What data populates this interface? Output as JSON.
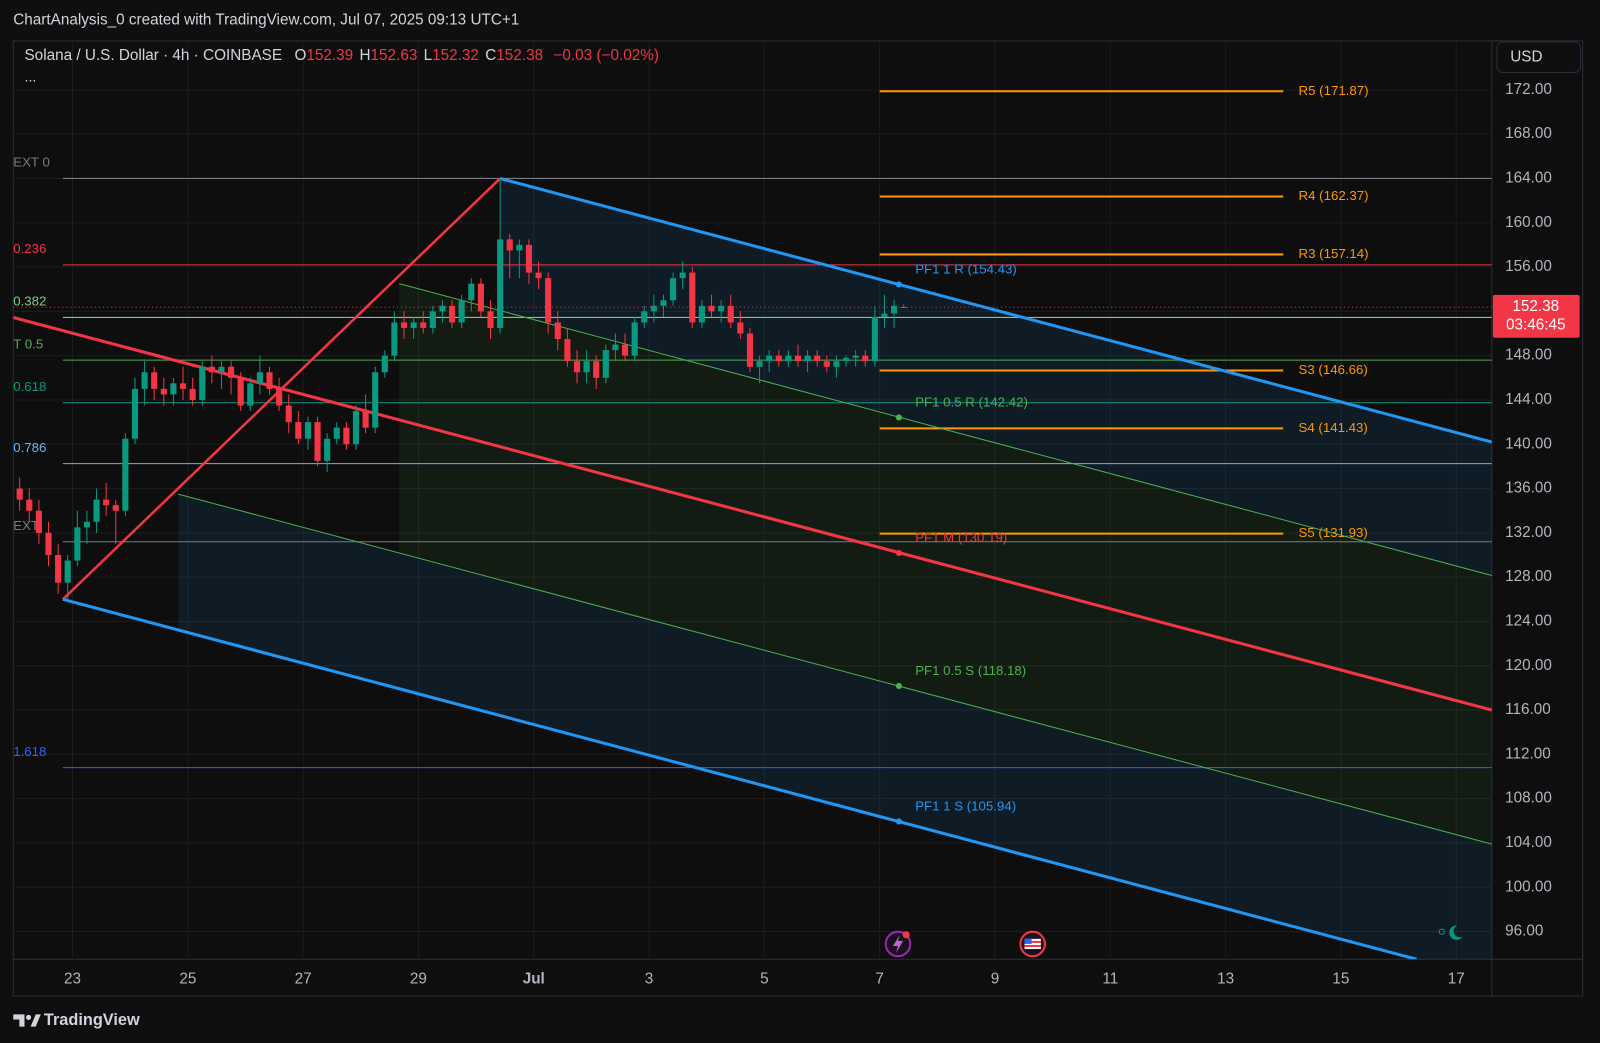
{
  "header": {
    "attribution": "ChartAnalysis_0 created with TradingView.com, Jul 07, 2025 09:13 UTC+1",
    "symbol": "Solana / U.S. Dollar · 4h · COINBASE",
    "ohlc_prefixes": [
      "O",
      "H",
      "L",
      "C"
    ],
    "change": "−0.03 (−0.02%)",
    "more": "...",
    "currency": "USD",
    "brand": "TradingView"
  },
  "chart_data": {
    "type": "candlestick",
    "x": [
      "2025-06-22 00:00",
      "2025-06-22 04:00",
      "2025-06-22 08:00",
      "2025-06-22 12:00",
      "2025-06-22 16:00",
      "2025-06-22 20:00",
      "2025-06-23 00:00",
      "2025-06-23 04:00",
      "2025-06-23 08:00",
      "2025-06-23 12:00",
      "2025-06-23 16:00",
      "2025-06-23 20:00",
      "2025-06-24 00:00",
      "2025-06-24 04:00",
      "2025-06-24 08:00",
      "2025-06-24 12:00",
      "2025-06-24 16:00",
      "2025-06-24 20:00",
      "2025-06-25 00:00",
      "2025-06-25 04:00",
      "2025-06-25 08:00",
      "2025-06-25 12:00",
      "2025-06-25 16:00",
      "2025-06-25 20:00",
      "2025-06-26 00:00",
      "2025-06-26 04:00",
      "2025-06-26 08:00",
      "2025-06-26 12:00",
      "2025-06-26 16:00",
      "2025-06-26 20:00",
      "2025-06-27 00:00",
      "2025-06-27 04:00",
      "2025-06-27 08:00",
      "2025-06-27 12:00",
      "2025-06-27 16:00",
      "2025-06-27 20:00",
      "2025-06-28 00:00",
      "2025-06-28 04:00",
      "2025-06-28 08:00",
      "2025-06-28 12:00",
      "2025-06-28 16:00",
      "2025-06-28 20:00",
      "2025-06-29 00:00",
      "2025-06-29 04:00",
      "2025-06-29 08:00",
      "2025-06-29 12:00",
      "2025-06-29 16:00",
      "2025-06-29 20:00",
      "2025-06-30 00:00",
      "2025-06-30 04:00",
      "2025-06-30 08:00",
      "2025-06-30 12:00",
      "2025-06-30 16:00",
      "2025-06-30 20:00",
      "2025-07-01 00:00",
      "2025-07-01 04:00",
      "2025-07-01 08:00",
      "2025-07-01 12:00",
      "2025-07-01 16:00",
      "2025-07-01 20:00",
      "2025-07-02 00:00",
      "2025-07-02 04:00",
      "2025-07-02 08:00",
      "2025-07-02 12:00",
      "2025-07-02 16:00",
      "2025-07-02 20:00",
      "2025-07-03 00:00",
      "2025-07-03 04:00",
      "2025-07-03 08:00",
      "2025-07-03 12:00",
      "2025-07-03 16:00",
      "2025-07-03 20:00",
      "2025-07-04 00:00",
      "2025-07-04 04:00",
      "2025-07-04 08:00",
      "2025-07-04 12:00",
      "2025-07-04 16:00",
      "2025-07-04 20:00",
      "2025-07-05 00:00",
      "2025-07-05 04:00",
      "2025-07-05 08:00",
      "2025-07-05 12:00",
      "2025-07-05 16:00",
      "2025-07-05 20:00",
      "2025-07-06 00:00",
      "2025-07-06 04:00",
      "2025-07-06 08:00",
      "2025-07-06 12:00",
      "2025-07-06 16:00",
      "2025-07-06 20:00",
      "2025-07-07 00:00",
      "2025-07-07 04:00",
      "2025-07-07 08:00"
    ],
    "open": [
      136,
      135,
      134,
      132,
      130,
      127.5,
      129.5,
      132.5,
      133,
      135,
      134.5,
      134,
      140.5,
      145,
      146.5,
      145,
      144.5,
      145.5,
      145,
      144,
      147,
      146.5,
      147,
      146,
      143.5,
      145.5,
      146.5,
      145,
      143.5,
      142,
      140.5,
      142,
      138.5,
      140.5,
      141.5,
      140,
      143,
      141.5,
      146.5,
      148,
      151,
      150.5,
      151,
      150.5,
      152,
      152.5,
      151,
      153,
      154.5,
      152,
      150.5,
      158.5,
      157.5,
      158,
      155.5,
      155,
      151,
      149.5,
      147.5,
      146.5,
      147.5,
      146,
      148.5,
      149,
      148,
      151,
      152,
      152.5,
      153,
      155,
      155.5,
      151,
      152.5,
      152,
      152.5,
      151,
      150,
      147,
      147.5,
      148,
      147.5,
      148,
      147.5,
      148,
      147.5,
      147,
      147.5,
      147.8,
      148,
      147.5,
      151.5,
      151.8,
      152.39
    ],
    "high": [
      137,
      136,
      135,
      133,
      131,
      130,
      134,
      134,
      136,
      136.5,
      135,
      141,
      146,
      147.5,
      147,
      146,
      146,
      147,
      146,
      147.5,
      148,
      147.5,
      147.5,
      146.5,
      146,
      148,
      147,
      146,
      144.5,
      143,
      142.5,
      142.5,
      141,
      142,
      142,
      143.5,
      144.5,
      147,
      148.5,
      152,
      152,
      151.5,
      152,
      152.5,
      153,
      153,
      153.5,
      155,
      155,
      153,
      164,
      159,
      158.5,
      158.5,
      156.5,
      155.5,
      152,
      150.5,
      148.5,
      148.5,
      148,
      149,
      150,
      150,
      151.5,
      152.5,
      153.5,
      153.5,
      155.5,
      156.5,
      156,
      153,
      153.5,
      153,
      153.5,
      152,
      150.5,
      148,
      148.5,
      148.5,
      148.5,
      149,
      148.5,
      148.5,
      148,
      148,
      148,
      148.5,
      148.5,
      152.5,
      153.5,
      153,
      152.63
    ],
    "low": [
      134,
      133,
      131,
      129,
      126.5,
      126,
      129,
      131,
      132,
      133.5,
      131,
      133.5,
      140,
      143.5,
      144,
      143.5,
      143.5,
      144,
      143.5,
      143.5,
      145.5,
      145,
      144.5,
      143,
      143,
      144.5,
      144.5,
      143,
      141,
      140,
      139.5,
      138,
      137.5,
      140,
      139.5,
      139.5,
      141,
      141,
      146,
      147.5,
      149.5,
      149.5,
      150,
      150,
      151,
      150.5,
      150.5,
      152,
      151.5,
      149.5,
      150,
      155,
      155,
      154.5,
      154,
      150,
      148.5,
      147,
      145.5,
      145.5,
      145,
      145.5,
      147.5,
      147.5,
      147.5,
      150.5,
      151,
      151.5,
      152.5,
      154,
      150.5,
      150.5,
      151.5,
      151,
      150.5,
      149.5,
      146.5,
      145.5,
      146.5,
      147,
      147,
      147,
      146.5,
      147,
      146.5,
      146,
      147,
      147,
      147,
      147,
      150.5,
      150.5,
      152.32
    ],
    "close": [
      135,
      134,
      132,
      130,
      127.5,
      129.5,
      132.5,
      133,
      135,
      134.5,
      134,
      140.5,
      145,
      146.5,
      145,
      144.5,
      145.5,
      145,
      144,
      147,
      146.5,
      147,
      146,
      143.5,
      145.5,
      146.5,
      145,
      143.5,
      142,
      140.5,
      142,
      138.5,
      140.5,
      141.5,
      140,
      143,
      141.5,
      146.5,
      148,
      151,
      150.5,
      151,
      150.5,
      152,
      152.5,
      151,
      153,
      154.5,
      152,
      150.5,
      158.5,
      157.5,
      158,
      155.5,
      155,
      151,
      149.5,
      147.5,
      146.5,
      147.5,
      146,
      148.5,
      149,
      148,
      151,
      152,
      152.5,
      153,
      155,
      155.5,
      151,
      152.5,
      152,
      152.5,
      151,
      150,
      147,
      147.5,
      148,
      147.5,
      148,
      147.5,
      148,
      147.5,
      147,
      147.5,
      147.8,
      148,
      147.5,
      151.5,
      151.8,
      152.5,
      152.38
    ],
    "up_color": "#089981",
    "down_color": "#f23645",
    "xlim": [
      "2025-06-21 23:20",
      "2025-07-17 14:50"
    ],
    "ylim": [
      93.5,
      176.42
    ],
    "xticks": [
      {
        "value": "2025-06-23",
        "label": "23"
      },
      {
        "value": "2025-06-25",
        "label": "25"
      },
      {
        "value": "2025-06-27",
        "label": "27"
      },
      {
        "value": "2025-06-29",
        "label": "29"
      },
      {
        "value": "2025-07-01",
        "label": "Jul"
      },
      {
        "value": "2025-07-03",
        "label": "3"
      },
      {
        "value": "2025-07-05",
        "label": "5"
      },
      {
        "value": "2025-07-07",
        "label": "7"
      },
      {
        "value": "2025-07-09",
        "label": "9"
      },
      {
        "value": "2025-07-11",
        "label": "11"
      },
      {
        "value": "2025-07-13",
        "label": "13"
      },
      {
        "value": "2025-07-15",
        "label": "15"
      },
      {
        "value": "2025-07-17",
        "label": "17"
      }
    ],
    "yticks": [
      {
        "value": 96,
        "label": "96.00"
      },
      {
        "value": 100,
        "label": "100.00"
      },
      {
        "value": 104,
        "label": "104.00"
      },
      {
        "value": 108,
        "label": "108.00"
      },
      {
        "value": 112,
        "label": "112.00"
      },
      {
        "value": 116,
        "label": "116.00"
      },
      {
        "value": 120,
        "label": "120.00"
      },
      {
        "value": 124,
        "label": "124.00"
      },
      {
        "value": 128,
        "label": "128.00"
      },
      {
        "value": 132,
        "label": "132.00"
      },
      {
        "value": 136,
        "label": "136.00"
      },
      {
        "value": 140,
        "label": "140.00"
      },
      {
        "value": 144,
        "label": "144.00"
      },
      {
        "value": 148,
        "label": "148.00"
      },
      {
        "value": 152,
        "label": "152.00"
      },
      {
        "value": 156,
        "label": "156.00"
      },
      {
        "value": 160,
        "label": "160.00"
      },
      {
        "value": 164,
        "label": "164.00"
      },
      {
        "value": 168,
        "label": "168.00"
      },
      {
        "value": 172,
        "label": "172.00"
      }
    ],
    "grid": true,
    "countdown": "03:46:45",
    "fib": {
      "from": "2025-06-22 20:00",
      "levels": [
        {
          "name": "EXT 0",
          "value": 164,
          "color": "#787b86"
        },
        {
          "name": "0.236",
          "value": 156.2,
          "color": "#f23645"
        },
        {
          "name": "0.382",
          "value": 151.45,
          "color": "#81c784"
        },
        {
          "name": "T 0.5",
          "value": 147.6,
          "color": "#4caf50"
        },
        {
          "name": "0.618",
          "value": 143.75,
          "color": "#089981"
        },
        {
          "name": "0.786",
          "value": 138.25,
          "color": "#64b5f6"
        },
        {
          "name": "EXT",
          "value": 131.2,
          "color": "#787b86"
        },
        {
          "name": "1.618",
          "value": 110.8,
          "color": "#2962ff"
        }
      ]
    },
    "pivots": {
      "from": "2025-07-07 00:00",
      "to": "2025-07-14 00:00",
      "color": "#ff9800",
      "levels": [
        {
          "label": "R5 (171.87)",
          "value": 171.87
        },
        {
          "label": "R4 (162.37)",
          "value": 162.37
        },
        {
          "label": "R3 (157.14)",
          "value": 157.14
        },
        {
          "label": "S3 (146.66)",
          "value": 146.66
        },
        {
          "label": "S4 (141.43)",
          "value": 141.43
        },
        {
          "label": "S5 (131.93)",
          "value": 131.93
        }
      ]
    },
    "pitchfork": {
      "lines": [
        {
          "color": "#f23645",
          "style": "medium",
          "x": [
            "2025-06-22 20:00",
            "2025-06-30 10:00"
          ],
          "values": [
            126,
            164
          ]
        },
        {
          "color": "#2196f3",
          "style": "thick",
          "x": [
            "2025-06-30 10:00",
            "2025-07-17 14:50"
          ],
          "values": [
            164,
            140.2
          ]
        },
        {
          "color": "#2196f3",
          "style": "thick",
          "x": [
            "2025-06-22 20:00",
            "2025-07-16 07:30"
          ],
          "values": [
            126,
            93.5
          ]
        },
        {
          "color": "#f23645",
          "style": "thick",
          "x": [
            "2025-06-21 23:20",
            "2025-07-17 14:50"
          ],
          "values": [
            151.45,
            116
          ]
        },
        {
          "color": "#4caf50",
          "style": "thin",
          "x": [
            "2025-06-28 16:00",
            "2025-07-17 14:50"
          ],
          "values": [
            154.5,
            128.15
          ]
        },
        {
          "color": "#4caf50",
          "style": "thin",
          "x": [
            "2025-06-24 20:00",
            "2025-07-17 14:50"
          ],
          "values": [
            135.5,
            103.9
          ]
        }
      ],
      "levels": [
        {
          "label": "PF1 1 R (154.43)",
          "value": 154.43,
          "color": "#2196f3"
        },
        {
          "label": "PF1 0.5 R (142.42)",
          "value": 142.42,
          "color": "#4caf50"
        },
        {
          "label": "PF1 M (130.19)",
          "value": 130.19,
          "color": "#f23645"
        },
        {
          "label": "PF1 0.5 S (118.18)",
          "value": 118.18,
          "color": "#4caf50"
        },
        {
          "label": "PF1 1 S (105.94)",
          "value": 105.94,
          "color": "#2196f3"
        }
      ]
    }
  }
}
